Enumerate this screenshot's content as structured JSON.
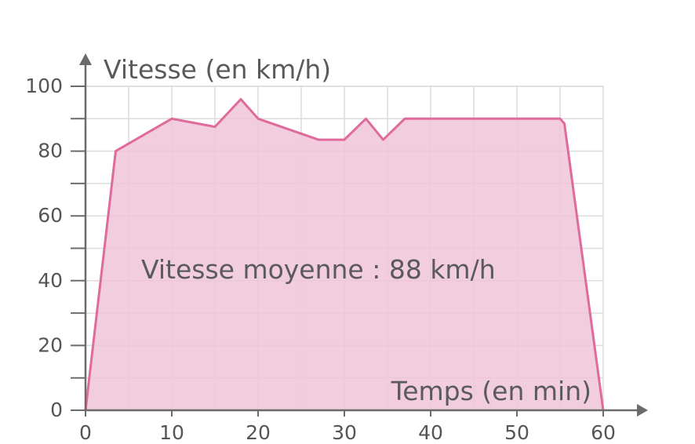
{
  "chart_data": {
    "type": "area",
    "ylabel": "Vitesse (en km/h)",
    "xlabel": "Temps (en min)",
    "annotation": "Vitesse moyenne : 88 km/h",
    "x_ticks": [
      "0",
      "10",
      "20",
      "30",
      "40",
      "50",
      "60"
    ],
    "y_ticks": [
      "0",
      "20",
      "40",
      "60",
      "80",
      "100"
    ],
    "xlim": [
      0,
      60
    ],
    "ylim": [
      0,
      100
    ],
    "grid": true,
    "colors": {
      "line": "#df6a9c",
      "fill": "#efc4d7",
      "grid": "#dcdcdc",
      "axis": "#6b6b6b"
    },
    "series": [
      {
        "x": [
          0,
          3.5,
          10,
          15,
          18,
          20,
          27,
          30,
          32.5,
          34.5,
          37,
          55,
          55.5,
          60
        ],
        "y": [
          0,
          80,
          90,
          87.5,
          96,
          90,
          83.5,
          83.5,
          90,
          83.5,
          90,
          90,
          88.5,
          0
        ]
      }
    ]
  }
}
